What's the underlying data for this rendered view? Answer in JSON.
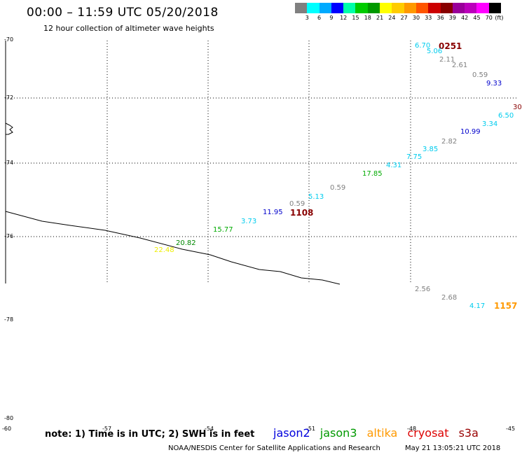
{
  "header": {
    "title": "00:00 – 11:59 UTC 05/20/2018",
    "subtitle": "12 hour collection of altimeter wave heights"
  },
  "legend": {
    "colors": [
      "#808080",
      "#00ffff",
      "#00aaff",
      "#0000ff",
      "#00ffaa",
      "#00cc00",
      "#009900",
      "#ffff00",
      "#ffcc00",
      "#ff9900",
      "#ff5500",
      "#cc0000",
      "#880000",
      "#990099",
      "#bb00bb",
      "#ff00ff",
      "#000000"
    ],
    "labels": [
      "3",
      "6",
      "9",
      "12",
      "15",
      "18",
      "21",
      "24",
      "27",
      "30",
      "33",
      "36",
      "39",
      "42",
      "45",
      "70",
      "(ft)"
    ]
  },
  "axes": {
    "lat_labels": [
      "-70",
      "-72",
      "-74",
      "-76",
      "-78",
      "-80"
    ],
    "lon_labels": [
      "-60",
      "-57",
      "-54",
      "-51",
      "-48",
      "-45"
    ]
  },
  "map_data": {
    "pass_ids": [
      {
        "text": "0251",
        "color": "#880000"
      },
      {
        "text": "1108",
        "color": "#880000"
      },
      {
        "text": "1157",
        "color": "#ff9900"
      }
    ],
    "points": [
      {
        "text": "6.70",
        "color": "#00ccee"
      },
      {
        "text": "5.06",
        "color": "#00ccee"
      },
      {
        "text": "2.11",
        "color": "#808080"
      },
      {
        "text": "2.61",
        "color": "#808080"
      },
      {
        "text": "0.59",
        "color": "#808080"
      },
      {
        "text": "9.33",
        "color": "#0000cc"
      },
      {
        "text": "30",
        "color": "#880000"
      },
      {
        "text": "6.50",
        "color": "#00ccee"
      },
      {
        "text": "3.34",
        "color": "#00ccee"
      },
      {
        "text": "10.99",
        "color": "#0000cc"
      },
      {
        "text": "2.82",
        "color": "#808080"
      },
      {
        "text": "3.85",
        "color": "#00ccee"
      },
      {
        "text": "7.75",
        "color": "#00ccee"
      },
      {
        "text": "4.31",
        "color": "#00ccee"
      },
      {
        "text": "17.85",
        "color": "#00aa00"
      },
      {
        "text": "0.59",
        "color": "#808080"
      },
      {
        "text": "5.13",
        "color": "#00ccee"
      },
      {
        "text": "0.59",
        "color": "#808080"
      },
      {
        "text": "11.95",
        "color": "#0000cc"
      },
      {
        "text": "3.73",
        "color": "#00ccee"
      },
      {
        "text": "15.77",
        "color": "#00aa00"
      },
      {
        "text": "20.82",
        "color": "#008800"
      },
      {
        "text": "22.48",
        "color": "#eeee00"
      },
      {
        "text": "2.56",
        "color": "#808080"
      },
      {
        "text": "2.68",
        "color": "#808080"
      },
      {
        "text": "4.17",
        "color": "#00ccee"
      }
    ]
  },
  "footer": {
    "note": "note: 1) Time is in UTC; 2) SWH is in feet",
    "satellites": [
      {
        "name": "jason2",
        "color": "#0000dd"
      },
      {
        "name": "jason3",
        "color": "#009900"
      },
      {
        "name": "altika",
        "color": "#ff9900"
      },
      {
        "name": "cryosat",
        "color": "#dd0000"
      },
      {
        "name": "s3a",
        "color": "#990000"
      }
    ],
    "credit": "NOAA/NESDIS Center for Satellite Applications and Research",
    "timestamp": "May 21 13:05:21 UTC 2018"
  }
}
